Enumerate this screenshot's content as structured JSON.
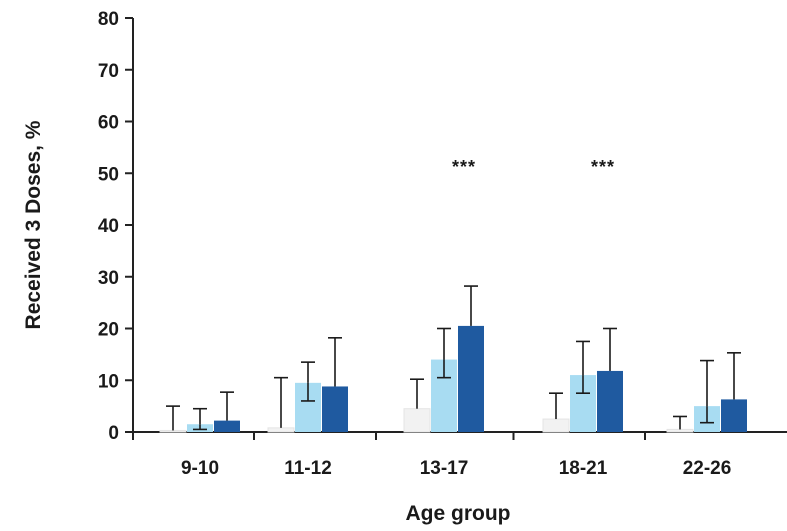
{
  "chart_data": {
    "type": "bar",
    "title": "",
    "xlabel": "Age group",
    "ylabel": "Received 3 Doses, %",
    "ylim": [
      0,
      80
    ],
    "yticks": [
      0,
      10,
      20,
      30,
      40,
      50,
      60,
      70,
      80
    ],
    "grid": false,
    "legend": "none",
    "categories": [
      "9-10",
      "11-12",
      "13-17",
      "18-21",
      "22-26"
    ],
    "series": [
      {
        "color": "#f2f2f2",
        "values": [
          0.3,
          0.8,
          4.5,
          2.5,
          0.5
        ],
        "error_high": [
          5,
          10.5,
          10.2,
          7.5,
          3
        ]
      },
      {
        "color": "#a8dcf2",
        "values": [
          1.5,
          9.5,
          14,
          11,
          5
        ],
        "error_low": [
          0.5,
          6,
          10.5,
          7.5,
          1.8
        ],
        "error_high": [
          4.5,
          13.5,
          20,
          17.5,
          13.8
        ]
      },
      {
        "color": "#1f5aa0",
        "values": [
          2.2,
          8.8,
          20.5,
          11.8,
          6.3
        ],
        "error_high": [
          7.7,
          18.2,
          28.2,
          20,
          15.3
        ]
      }
    ],
    "annotations": [
      {
        "category": "13-17",
        "text": "***",
        "y": 52
      },
      {
        "category": "18-21",
        "text": "***",
        "y": 52
      }
    ]
  }
}
